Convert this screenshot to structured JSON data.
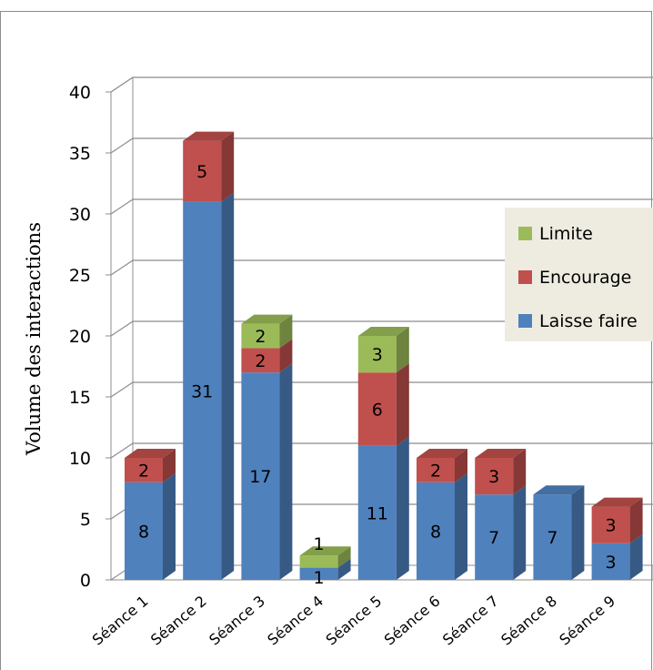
{
  "chart_data": {
    "type": "bar",
    "stacked": true,
    "style": "3d",
    "title": "",
    "xlabel": "",
    "ylabel": "Volume des interactions",
    "ylim": [
      0,
      40
    ],
    "yticks": [
      0,
      5,
      10,
      15,
      20,
      25,
      30,
      35,
      40
    ],
    "grid": true,
    "legend_position": "right",
    "categories": [
      "Séance 1",
      "Séance 2",
      "Séance 3",
      "Séance 4",
      "Séance 5",
      "Séance 6",
      "Séance 7",
      "Séance 8",
      "Séance 9"
    ],
    "series": [
      {
        "name": "Laisse faire",
        "color": "#4F81BD",
        "values": [
          8,
          31,
          17,
          1,
          11,
          8,
          7,
          7,
          3
        ],
        "labels": [
          "8",
          "31",
          "17",
          "1",
          "11",
          "8",
          "7",
          "7",
          "3"
        ]
      },
      {
        "name": "Encourage",
        "color": "#C0504D",
        "values": [
          2,
          5,
          2,
          0,
          6,
          2,
          3,
          0,
          3
        ],
        "labels": [
          "2",
          "5",
          "2",
          "",
          "6",
          "2",
          "3",
          "",
          "3"
        ]
      },
      {
        "name": "Limite",
        "color": "#9BBB59",
        "values": [
          0,
          0,
          2,
          1,
          3,
          0,
          0,
          0,
          0
        ],
        "labels": [
          "",
          "",
          "2",
          "1",
          "3",
          "",
          "",
          "",
          ""
        ]
      }
    ],
    "legend_order": [
      "Limite",
      "Encourage",
      "Laisse faire"
    ]
  }
}
